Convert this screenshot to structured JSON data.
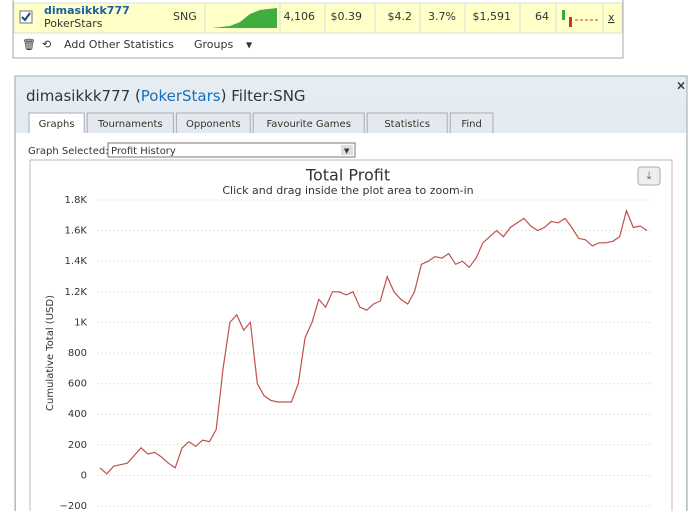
{
  "table": {
    "row": {
      "player": "dimasikkk777",
      "site": "PokerStars",
      "game": "SNG",
      "cells": [
        "4,106",
        "$0.39",
        "$4.2",
        "3.7%",
        "$1,591",
        "64"
      ],
      "remove": "x"
    }
  },
  "toolbar": {
    "add": "Add Other Statistics",
    "groups": "Groups"
  },
  "window": {
    "player": "dimasikkk777",
    "site": "PokerStars",
    "filter": "Filter:SNG",
    "tabs": [
      "Graphs",
      "Tournaments",
      "Opponents",
      "Favourite Games",
      "Statistics",
      "Find"
    ],
    "graph_label": "Graph Selected:",
    "graph_selected": "Profit History"
  },
  "chart_data": {
    "type": "line",
    "title": "Total Profit",
    "subtitle": "Click and drag inside the plot area to zoom-in",
    "y_label": "Cumulative Total (USD)",
    "color": "#c0504d",
    "grid": true,
    "ylim": [
      -200,
      1800
    ],
    "yticks": [
      {
        "value": -200,
        "label": "−200"
      },
      0,
      200,
      400,
      600,
      800,
      {
        "value": 1000,
        "label": "1K"
      },
      {
        "value": 1200,
        "label": "1.2K"
      },
      {
        "value": 1400,
        "label": "1.4K"
      },
      {
        "value": 1600,
        "label": "1.6K"
      },
      {
        "value": 1800,
        "label": "1.8K"
      }
    ],
    "values": [
      50,
      10,
      60,
      70,
      80,
      130,
      180,
      140,
      150,
      120,
      80,
      50,
      180,
      220,
      190,
      230,
      220,
      300,
      700,
      1000,
      1050,
      950,
      1000,
      600,
      520,
      490,
      480,
      480,
      480,
      600,
      900,
      1000,
      1150,
      1100,
      1200,
      1200,
      1180,
      1200,
      1100,
      1080,
      1120,
      1140,
      1300,
      1200,
      1150,
      1120,
      1200,
      1380,
      1400,
      1430,
      1420,
      1450,
      1380,
      1400,
      1360,
      1420,
      1520,
      1560,
      1600,
      1560,
      1620,
      1650,
      1680,
      1630,
      1600,
      1620,
      1660,
      1650,
      1680,
      1620,
      1550,
      1540,
      1500,
      1520,
      1520,
      1530,
      1560,
      1730,
      1620,
      1630,
      1600
    ]
  }
}
